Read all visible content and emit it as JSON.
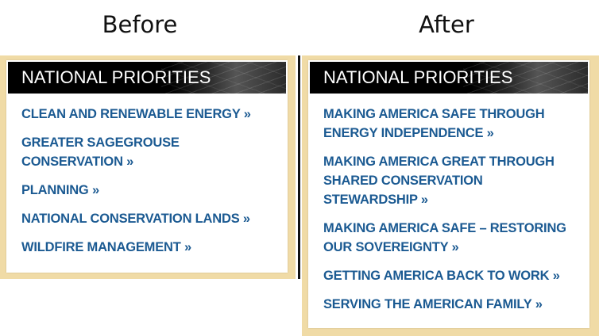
{
  "before": {
    "caption": "Before",
    "header": "NATIONAL PRIORITIES",
    "links": [
      "CLEAN AND RENEWABLE ENERGY »",
      "GREATER SAGEGROUSE CONSERVATION »",
      "PLANNING »",
      "NATIONAL CONSERVATION LANDS »",
      "WILDFIRE MANAGEMENT »"
    ]
  },
  "after": {
    "caption": "After",
    "header": "NATIONAL PRIORITIES",
    "links": [
      "MAKING AMERICA SAFE THROUGH ENERGY INDEPENDENCE »",
      "MAKING AMERICA GREAT THROUGH SHARED CONSERVATION STEWARDSHIP »",
      "MAKING AMERICA SAFE – RESTORING OUR SOVEREIGNTY »",
      "GETTING AMERICA BACK TO WORK »",
      "SERVING THE AMERICAN FAMILY »"
    ]
  },
  "colors": {
    "frame": "#f0dba6",
    "link": "#1b5a92",
    "header_bg": "#000000"
  }
}
